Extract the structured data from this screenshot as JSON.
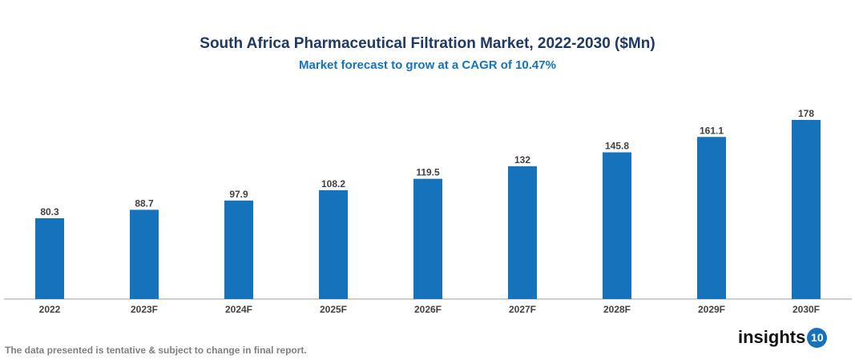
{
  "chart_data": {
    "type": "bar",
    "title": "South Africa Pharmaceutical Filtration Market, 2022-2030 ($Mn)",
    "subtitle": "Market forecast to grow at a CAGR of 10.47%",
    "categories": [
      "2022",
      "2023F",
      "2024F",
      "2025F",
      "2026F",
      "2027F",
      "2028F",
      "2029F",
      "2030F"
    ],
    "values": [
      80.3,
      88.7,
      97.9,
      108.2,
      119.5,
      132,
      145.8,
      161.1,
      178
    ],
    "data_labels": [
      "80.3",
      "88.7",
      "97.9",
      "108.2",
      "119.5",
      "132",
      "145.8",
      "161.1",
      "178"
    ],
    "xlabel": "",
    "ylabel": "",
    "ylim": [
      0,
      178
    ],
    "grid": false,
    "bar_color": "#1672bb"
  },
  "footnote": "The data presented is tentative & subject to change in final report.",
  "logo": {
    "text": "insights",
    "number": "10"
  }
}
